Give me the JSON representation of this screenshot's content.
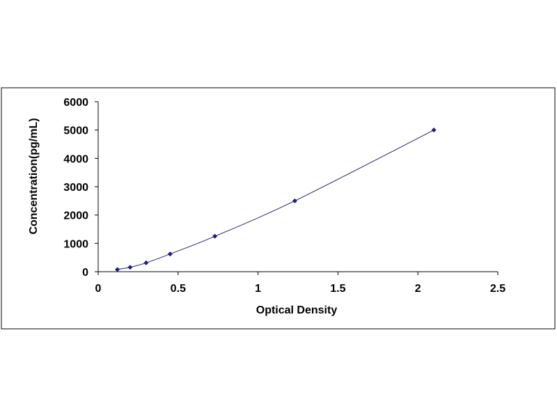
{
  "chart_data": {
    "type": "scatter",
    "title": "",
    "xlabel": "Optical Density",
    "ylabel": "Concentration(pg/mL)",
    "xlim": [
      0,
      2.5
    ],
    "ylim": [
      0,
      6000
    ],
    "x_ticks": [
      "0",
      "0.5",
      "1",
      "1.5",
      "2",
      "2.5"
    ],
    "y_ticks": [
      "0",
      "1000",
      "2000",
      "3000",
      "4000",
      "5000",
      "6000"
    ],
    "grid": false,
    "legend": "none",
    "trendline": "smooth curve through points",
    "series": [
      {
        "x": [
          0.12,
          0.2,
          0.3,
          0.45,
          0.73,
          1.23,
          2.1
        ],
        "y": [
          78,
          156,
          312,
          625,
          1250,
          2500,
          5000
        ]
      }
    ],
    "colors": {
      "marker": "#1f1f7a",
      "line": "#1f1f7a",
      "border": "#000000"
    }
  }
}
